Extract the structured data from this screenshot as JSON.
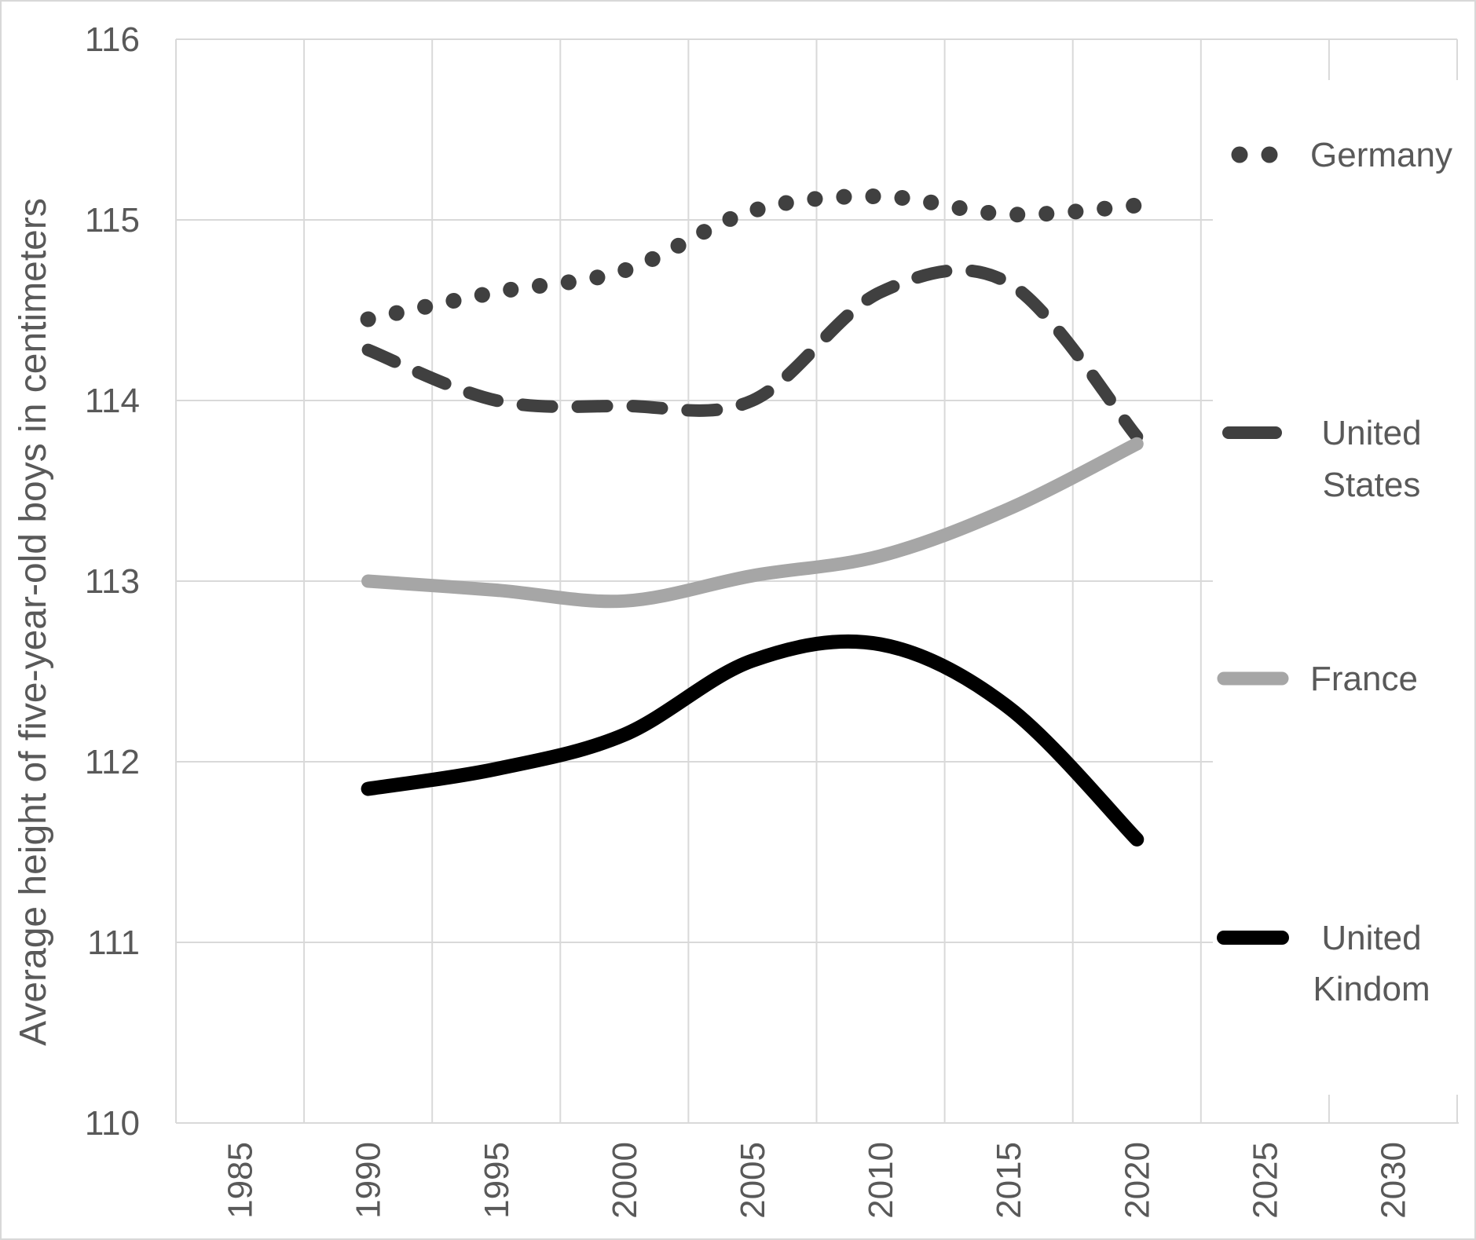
{
  "chart_data": {
    "type": "line",
    "title": "",
    "xlabel": "",
    "ylabel": "Average height of five-year-old boys in centimeters",
    "ylim": [
      110,
      116
    ],
    "grid": true,
    "legend_position": "right",
    "colors": {
      "dark_series": "#404040",
      "france_gray": "#a6a6a6",
      "uk_black": "#000000",
      "gridline": "#d9d9d9",
      "axis_text": "#595959",
      "background": "#ffffff"
    },
    "x_axis": {
      "tick_labels": [
        "1985",
        "1990",
        "1995",
        "2000",
        "2005",
        "2010",
        "2015",
        "2020",
        "2025",
        "2030"
      ]
    },
    "y_axis": {
      "tick_labels": [
        "110",
        "111",
        "112",
        "113",
        "114",
        "115",
        "116"
      ],
      "ticks": [
        110,
        111,
        112,
        113,
        114,
        115,
        116
      ]
    },
    "x": [
      1990,
      1995,
      2000,
      2005,
      2010,
      2015,
      2020
    ],
    "series": [
      {
        "id": "germany",
        "name": "Germany",
        "legend_lines": [
          "Germany"
        ],
        "style": "dotted",
        "color": "#404040",
        "stroke_width": 20,
        "values": [
          114.45,
          114.6,
          114.72,
          115.05,
          115.13,
          115.03,
          115.08
        ]
      },
      {
        "id": "united-states",
        "name": "United States",
        "legend_lines": [
          "United",
          "States"
        ],
        "style": "dashed",
        "color": "#404040",
        "stroke_width": 16,
        "values": [
          114.28,
          114.0,
          113.97,
          114.0,
          114.6,
          114.65,
          113.8
        ]
      },
      {
        "id": "france",
        "name": "France",
        "legend_lines": [
          "France"
        ],
        "style": "solid",
        "color": "#a6a6a6",
        "stroke_width": 17,
        "values": [
          113.0,
          112.95,
          112.89,
          113.03,
          113.14,
          113.4,
          113.76
        ]
      },
      {
        "id": "united-kingdom",
        "name": "United Kindom",
        "legend_lines": [
          "United",
          "Kindom"
        ],
        "style": "solid",
        "color": "#000000",
        "stroke_width": 18,
        "values": [
          111.85,
          111.96,
          112.15,
          112.56,
          112.65,
          112.3,
          111.57
        ]
      }
    ]
  }
}
